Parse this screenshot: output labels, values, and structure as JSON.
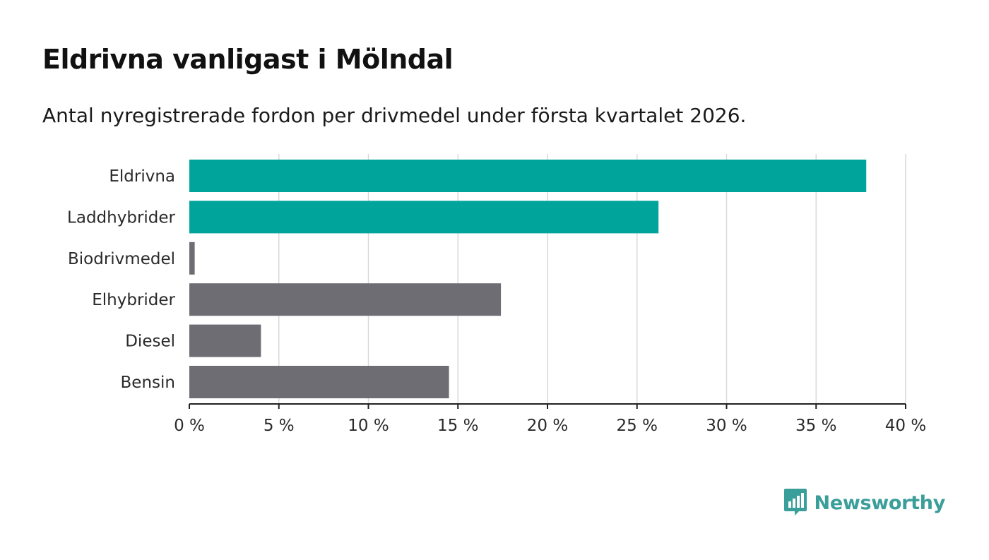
{
  "header": {
    "title": "Eldrivna vanligast i Mölndal",
    "subtitle": "Antal nyregistrerade fordon per drivmedel under första kvartalet 2026."
  },
  "chart_data": {
    "type": "bar",
    "orientation": "horizontal",
    "categories": [
      "Eldrivna",
      "Laddhybrider",
      "Biodrivmedel",
      "Elhybrider",
      "Diesel",
      "Bensin"
    ],
    "values": [
      37.8,
      26.2,
      0.3,
      17.4,
      4.0,
      14.5
    ],
    "highlight": [
      true,
      true,
      false,
      false,
      false,
      false
    ],
    "xlim": [
      0,
      40
    ],
    "xticks": [
      0,
      5,
      10,
      15,
      20,
      25,
      30,
      35,
      40
    ],
    "tick_suffix": " %",
    "grid": true,
    "xlabel": "",
    "ylabel": ""
  },
  "colors": {
    "highlight": "#00a49a",
    "default": "#6e6d74",
    "grid": "#d9d9d9",
    "axis": "#222222",
    "brand": "#3a9e9a"
  },
  "brand": {
    "name": "Newsworthy",
    "icon": "newsworthy-logo-icon"
  }
}
